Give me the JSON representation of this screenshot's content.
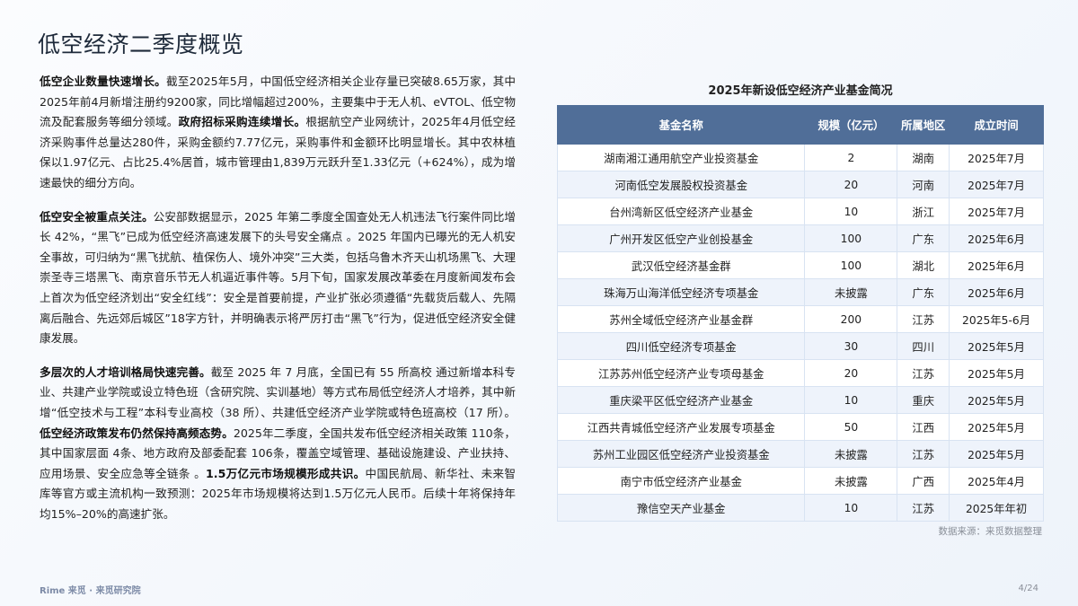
{
  "title": "低空经济二季度概览",
  "paragraphs": [
    {
      "segments": [
        {
          "b": true,
          "t": "低空企业数量快速增长。"
        },
        {
          "b": false,
          "t": "截至2025年5月，中国低空经济相关企业存量已突破8.65万家，其中2025年前4月新增注册约9200家，同比增幅超过200%，主要集中于无人机、eVTOL、低空物流及配套服务等细分领域。"
        },
        {
          "b": true,
          "t": "政府招标采购连续增长。"
        },
        {
          "b": false,
          "t": "根据航空产业网统计，2025年4月低空经济采购事件总量达280件，采购金额约7.77亿元，采购事件和金额环比明显增长。其中农林植保以1.97亿元、占比25.4%居首，城市管理由1,839万元跃升至1.33亿元（+624%），成为增速最快的细分方向。"
        }
      ]
    },
    {
      "segments": [
        {
          "b": true,
          "t": "低空安全被重点关注。"
        },
        {
          "b": false,
          "t": "公安部数据显示，2025 年第二季度全国查处无人机违法飞行案件同比增长 42%，“黑飞”已成为低空经济高速发展下的头号安全痛点 。2025 年国内已曝光的无人机安全事故，可归纳为“黑飞扰航、植保伤人、境外冲突”三大类，包括乌鲁木齐天山机场黑飞、大理崇圣寺三塔黑飞、南京音乐节无人机逼近事件等。5月下旬，国家发展改革委在月度新闻发布会上首次为低空经济划出“安全红线”：安全是首要前提，产业扩张必须遵循“先载货后载人、先隔离后融合、先远郊后城区”18字方针，并明确表示将严厉打击“黑飞”行为，促进低空经济安全健康发展。"
        }
      ]
    },
    {
      "segments": [
        {
          "b": true,
          "t": "多层次的人才培训格局快速完善。"
        },
        {
          "b": false,
          "t": "截至 2025 年 7 月底，全国已有 55 所高校 通过新增本科专业、共建产业学院或设立特色班（含研究院、实训基地）等方式布局低空经济人才培养，其中新增“低空技术与工程”本科专业高校（38 所）、共建低空经济产业学院或特色班高校（17 所）。"
        },
        {
          "b": true,
          "t": "低空经济政策发布仍然保持高频态势。"
        },
        {
          "b": false,
          "t": "2025年二季度，全国共发布低空经济相关政策 110条，其中国家层面 4条、地方政府及部委配套 106条，覆盖空域管理、基础设施建设、产业扶持、应用场景、安全应急等全链条 。"
        },
        {
          "b": true,
          "t": "1.5万亿元市场规模形成共识。"
        },
        {
          "b": false,
          "t": "中国民航局、新华社、未来智库等官方或主流机构一致预测：2025年市场规模将达到1.5万亿元人民币。后续十年将保持年均15%–20%的高速扩张。"
        }
      ]
    }
  ],
  "table": {
    "caption": "2025年新设低空经济产业基金简况",
    "headers": [
      "基金名称",
      "规模（亿元）",
      "所属地区",
      "成立时间"
    ],
    "rows": [
      [
        "湖南湘江通用航空产业投资基金",
        "2",
        "湖南",
        "2025年7月"
      ],
      [
        "河南低空发展股权投资基金",
        "20",
        "河南",
        "2025年7月"
      ],
      [
        "台州湾新区低空经济产业基金",
        "10",
        "浙江",
        "2025年7月"
      ],
      [
        "广州开发区低空产业创投基金",
        "100",
        "广东",
        "2025年6月"
      ],
      [
        "武汉低空经济基金群",
        "100",
        "湖北",
        "2025年6月"
      ],
      [
        "珠海万山海洋低空经济专项基金",
        "未披露",
        "广东",
        "2025年6月"
      ],
      [
        "苏州全域低空经济产业基金群",
        "200",
        "江苏",
        "2025年5-6月"
      ],
      [
        "四川低空经济专项基金",
        "30",
        "四川",
        "2025年5月"
      ],
      [
        "江苏苏州低空经济产业专项母基金",
        "20",
        "江苏",
        "2025年5月"
      ],
      [
        "重庆梁平区低空经济产业基金",
        "10",
        "重庆",
        "2025年5月"
      ],
      [
        "江西共青城低空经济产业发展专项基金",
        "50",
        "江西",
        "2025年5月"
      ],
      [
        "苏州工业园区低空经济产业投资基金",
        "未披露",
        "江苏",
        "2025年5月"
      ],
      [
        "南宁市低空经济产业基金",
        "未披露",
        "广西",
        "2025年4月"
      ],
      [
        "豫信空天产业基金",
        "10",
        "江苏",
        "2025年年初"
      ]
    ],
    "source": "数据来源：来觅数据整理"
  },
  "footer": {
    "brand": "Rime 来觅 · 来觅研究院",
    "page": "4/24"
  },
  "colors": {
    "header_bg": "#506e98",
    "row_alt": "#eef3fb"
  }
}
